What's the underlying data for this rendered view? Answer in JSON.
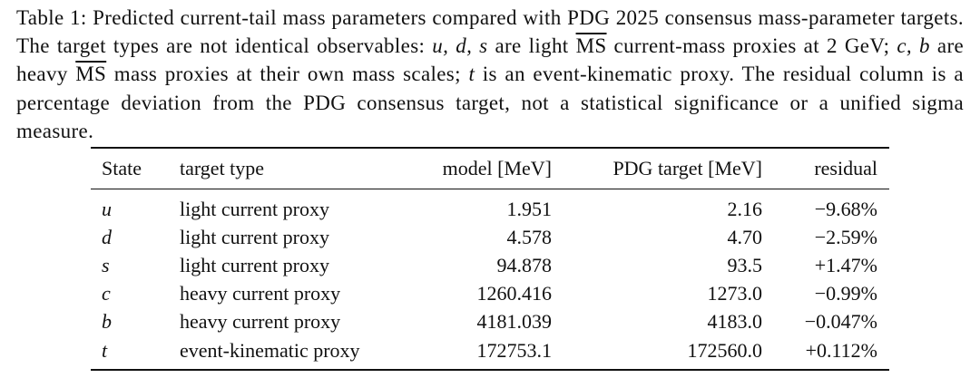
{
  "caption": {
    "parts": [
      "Table 1:",
      " Predicted current-tail mass parameters compared with PDG 2025 consensus mass-parameter targets. The target types are not identical observables: ",
      "u, d, s",
      " are light ",
      "MS",
      " current-mass proxies at 2 GeV; ",
      "c, b",
      " are heavy ",
      "MS",
      " mass proxies at their own mass scales; ",
      "t",
      " is an event-kinematic proxy. The residual column is a percentage deviation from the PDG consensus target, not a statistical significance or a unified sigma measure."
    ]
  },
  "table": {
    "headers": [
      "State",
      "target type",
      "model [MeV]",
      "PDG target [MeV]",
      "residual"
    ],
    "rows": [
      [
        "u",
        "light current proxy",
        "1.951",
        "2.16",
        "−9.68%"
      ],
      [
        "d",
        "light current proxy",
        "4.578",
        "4.70",
        "−2.59%"
      ],
      [
        "s",
        "light current proxy",
        "94.878",
        "93.5",
        "+1.47%"
      ],
      [
        "c",
        "heavy current proxy",
        "1260.416",
        "1273.0",
        "−0.99%"
      ],
      [
        "b",
        "heavy current proxy",
        "4181.039",
        "4183.0",
        "−0.047%"
      ],
      [
        "t",
        "event-kinematic proxy",
        "172753.1",
        "172560.0",
        "+0.112%"
      ]
    ]
  }
}
